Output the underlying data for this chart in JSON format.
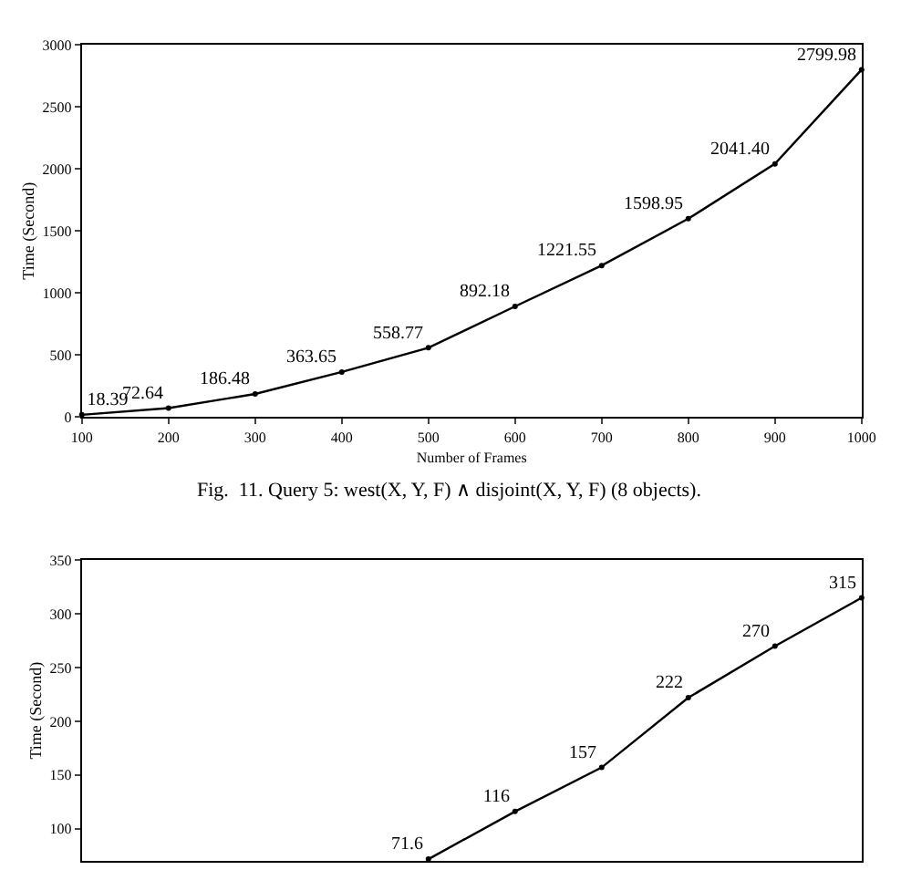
{
  "chart_data": [
    {
      "type": "line",
      "xlabel": "Number of Frames",
      "ylabel": "Time (Second)",
      "x": [
        100,
        200,
        300,
        400,
        500,
        600,
        700,
        800,
        900,
        1000
      ],
      "values": [
        18.39,
        72.64,
        186.48,
        363.65,
        558.77,
        892.18,
        1221.55,
        1598.95,
        2041.4,
        2799.98
      ],
      "value_labels": [
        "18.39",
        "72.64",
        "186.48",
        "363.65",
        "558.77",
        "892.18",
        "1221.55",
        "1598.95",
        "2041.40",
        "2799.98"
      ],
      "color": "#000000",
      "marker": "circle",
      "xlim": [
        100,
        1000
      ],
      "ylim": [
        0,
        3000
      ],
      "xticks": [
        100,
        200,
        300,
        400,
        500,
        600,
        700,
        800,
        900,
        1000
      ],
      "yticks": [
        0,
        500,
        1000,
        1500,
        2000,
        2500,
        3000
      ],
      "annotations": [
        "Fig.  11. Query 5: west(X, Y, F) ∧ disjoint(X, Y, F) (8 objects)."
      ]
    },
    {
      "type": "line",
      "ylabel": "Time (Second)",
      "categories": [
        null,
        null,
        null,
        null,
        null,
        null,
        null,
        null,
        null,
        null
      ],
      "values": [
        null,
        null,
        null,
        null,
        71.6,
        116,
        157,
        222,
        270,
        315
      ],
      "data_labels": true,
      "color": "#000000",
      "marker": "circle",
      "ylim": [
        70,
        350
      ],
      "yticks": [
        100,
        150,
        200,
        250,
        300,
        350
      ],
      "tick_labels": "y"
    }
  ]
}
